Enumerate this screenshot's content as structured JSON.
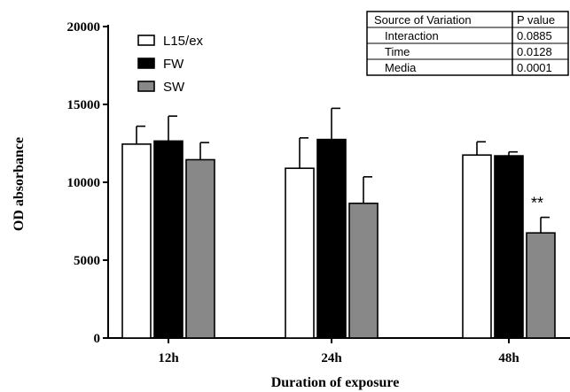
{
  "chart_data": {
    "type": "bar",
    "categories": [
      "12h",
      "24h",
      "48h"
    ],
    "series": [
      {
        "name": "L15/ex",
        "color": "#ffffff",
        "values": [
          12450,
          10900,
          11750
        ],
        "errors": [
          1150,
          1950,
          850
        ]
      },
      {
        "name": "FW",
        "color": "#000000",
        "values": [
          12650,
          12750,
          11700
        ],
        "errors": [
          1600,
          2000,
          250
        ]
      },
      {
        "name": "SW",
        "color": "#888888",
        "values": [
          11450,
          8650,
          6750
        ],
        "errors": [
          1100,
          1700,
          1000
        ]
      }
    ],
    "xlabel": "Duration of exposure",
    "ylabel": "OD absorbance",
    "ylim": [
      0,
      20000
    ],
    "yticks": [
      0,
      5000,
      10000,
      15000,
      20000
    ],
    "grid": false,
    "legend_position": "top-left",
    "annotations": [
      {
        "text": "**",
        "category": "48h",
        "series": "SW"
      }
    ],
    "table": {
      "headers": [
        "Source of Variation",
        "P value"
      ],
      "rows": [
        [
          "Interaction",
          "0.0885"
        ],
        [
          "Time",
          "0.0128"
        ],
        [
          "Media",
          "0.0001"
        ]
      ]
    }
  }
}
